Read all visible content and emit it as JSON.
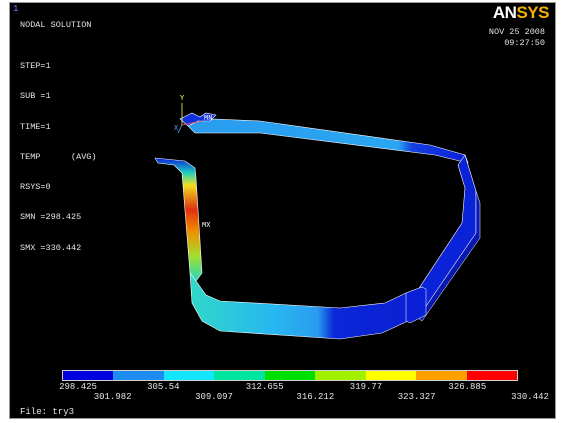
{
  "window_number": "1",
  "brand": {
    "prefix": "AN",
    "suffix": "SYS"
  },
  "title": "NODAL SOLUTION",
  "info": {
    "step": "STEP=1",
    "sub": "SUB =1",
    "time": "TIME=1",
    "temp": "TEMP      (AVG)",
    "rsys": "RSYS=0",
    "smn": "SMN =298.425",
    "smx": "SMX =330.442"
  },
  "date": "NOV 25 2008",
  "clock": "09:27:50",
  "markers": {
    "min": "MN",
    "max": "MX",
    "axis_y": "Y",
    "axis_x": "X"
  },
  "legend": {
    "colors": [
      "#0000e0",
      "#1e8cf0",
      "#14e6ff",
      "#00e6a0",
      "#00e000",
      "#a0f000",
      "#ffff00",
      "#ffa000",
      "#ff0000"
    ],
    "top_labels": [
      "298.425",
      "305.54",
      "312.655",
      "319.77",
      "326.885"
    ],
    "bottom_labels": [
      "301.982",
      "309.097",
      "316.212",
      "323.327",
      "330.442"
    ]
  },
  "file_label": "File: try3"
}
